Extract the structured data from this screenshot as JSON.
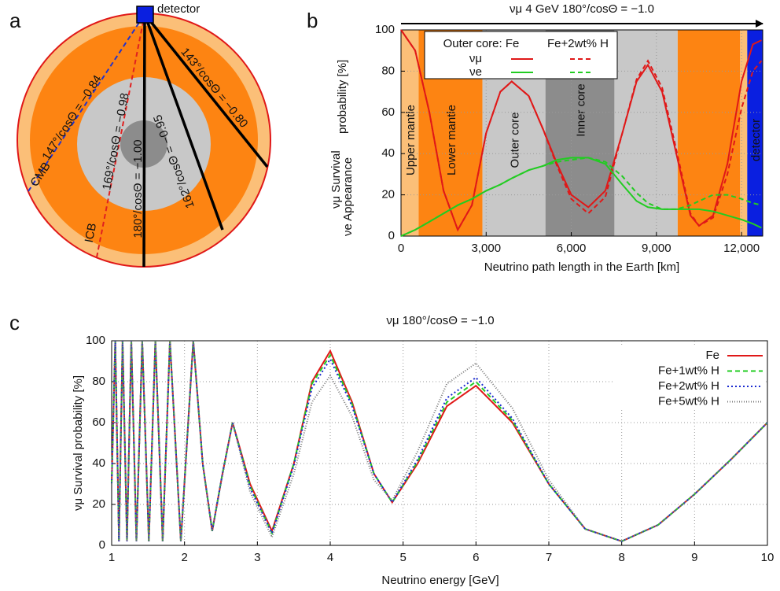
{
  "panel_labels": [
    "a",
    "b",
    "c"
  ],
  "panel_a": {
    "detector": "detector",
    "paths": [
      {
        "boundary": "CMB",
        "angle": "147°/cosΘ = −0.84",
        "color": "#2233cc",
        "dashed": true
      },
      {
        "boundary": "ICB",
        "angle": "169°/cosΘ = −0.98",
        "color": "#e02020",
        "dashed": true
      },
      {
        "angle": "180°/cosΘ = −1.00",
        "color": "#000000",
        "dashed": false
      },
      {
        "angle": "162°/cosΘ = −0.95",
        "color": "#000000",
        "dashed": false
      },
      {
        "angle": "143°/cosΘ = −0.80",
        "color": "#000000",
        "dashed": false
      }
    ]
  },
  "chart_data": [
    {
      "type": "line",
      "title": "νμ  4 GeV  180°/cosΘ = −1.0",
      "xlabel": "Neutrino path length in the Earth [km]",
      "ylabel": {
        "survival": "νμ  Survival",
        "appearance": "νe Appearance",
        "unit": "probability [%]"
      },
      "xlim": [
        0,
        12745
      ],
      "ylim": [
        0,
        100
      ],
      "xticks": [
        0,
        {
          "value": 3000,
          "label": "3,000"
        },
        {
          "value": 6000,
          "label": "6,000"
        },
        {
          "value": 9000,
          "label": "9,000"
        },
        {
          "value": 12000,
          "label": "12,000"
        }
      ],
      "yticks": [
        0,
        20,
        40,
        60,
        80,
        100
      ],
      "grid": true,
      "regions": [
        {
          "label": "Upper mantle",
          "start": 0,
          "end": 620,
          "color": "#fbbf78"
        },
        {
          "label": "Lower mantle",
          "start": 620,
          "end": 2870,
          "color": "#fd8412"
        },
        {
          "label": "Outer core",
          "start": 2870,
          "end": 5090,
          "color": "#c8c8c8"
        },
        {
          "label": "Inner core",
          "start": 5090,
          "end": 7520,
          "color": "#8c8c8c"
        },
        {
          "start": 7520,
          "end": 9750,
          "color": "#c8c8c8"
        },
        {
          "start": 9750,
          "end": 11950,
          "color": "#fd8412"
        },
        {
          "start": 11950,
          "end": 12200,
          "color": "#fbbf78"
        },
        {
          "label": "detector",
          "start": 12200,
          "end": 12745,
          "color": "#0a1fe0"
        }
      ],
      "legend": {
        "columns": [
          "Outer core: Fe",
          "Fe+2wt% H"
        ],
        "rows": [
          "νμ",
          "νe"
        ]
      },
      "x": [
        0,
        500,
        1000,
        1500,
        2000,
        2500,
        3000,
        3500,
        3900,
        4500,
        5000,
        5500,
        6000,
        6600,
        7200,
        7800,
        8300,
        8700,
        9200,
        9700,
        10200,
        10500,
        11000,
        11500,
        12000,
        12400,
        12700
      ],
      "series": [
        {
          "color": "#e01818",
          "dashed": false,
          "row": 0,
          "col": 0,
          "values": [
            100,
            90,
            60,
            22,
            3,
            15,
            50,
            70,
            75,
            68,
            52,
            35,
            20,
            14,
            22,
            50,
            75,
            83,
            70,
            40,
            10,
            5,
            10,
            35,
            75,
            93,
            95
          ]
        },
        {
          "color": "#e01818",
          "dashed": true,
          "row": 0,
          "col": 1,
          "values": [
            100,
            90,
            60,
            22,
            3,
            15,
            50,
            70,
            75,
            68,
            52,
            34,
            18,
            11,
            19,
            50,
            76,
            85,
            72,
            42,
            11,
            5,
            9,
            30,
            62,
            80,
            85
          ]
        },
        {
          "color": "#22cc22",
          "dashed": false,
          "row": 1,
          "col": 0,
          "values": [
            0,
            3,
            7,
            11,
            15,
            18,
            22,
            25,
            28,
            32,
            34,
            37,
            38,
            38,
            35,
            25,
            17,
            14,
            13,
            13,
            13,
            13,
            12,
            10,
            8,
            6,
            4
          ]
        },
        {
          "color": "#22cc22",
          "dashed": true,
          "row": 1,
          "col": 1,
          "values": [
            0,
            3,
            7,
            11,
            15,
            18,
            22,
            25,
            28,
            32,
            34,
            36,
            37,
            38,
            36,
            29,
            21,
            16,
            13,
            13,
            15,
            17,
            20,
            20,
            18,
            16,
            15
          ]
        }
      ]
    },
    {
      "type": "line",
      "title": "νμ    180°/cosΘ = −1.0",
      "xlabel": "Neutrino energy [GeV]",
      "ylabel": "νμ  Survival  probability [%]",
      "xlim": [
        1,
        10
      ],
      "ylim": [
        0,
        100
      ],
      "xticks": [
        1,
        2,
        3,
        4,
        5,
        6,
        7,
        8,
        9,
        10
      ],
      "yticks": [
        0,
        20,
        40,
        60,
        80,
        100
      ],
      "grid": true,
      "x": [
        1,
        1.05,
        1.1,
        1.15,
        1.21,
        1.27,
        1.34,
        1.42,
        1.51,
        1.6,
        1.7,
        1.8,
        1.95,
        2.12,
        2.25,
        2.38,
        2.52,
        2.66,
        2.9,
        3.2,
        3.5,
        3.75,
        4.0,
        4.3,
        4.6,
        4.85,
        5.2,
        5.6,
        6.0,
        6.5,
        7.0,
        7.5,
        8.0,
        8.5,
        9.0,
        9.5,
        10
      ],
      "series": [
        {
          "name": "Fe",
          "color": "#e01818",
          "dash": "",
          "values": [
            30,
            100,
            2,
            100,
            2,
            100,
            2,
            100,
            2,
            100,
            2,
            100,
            2,
            100,
            40,
            7,
            35,
            60,
            30,
            7,
            40,
            80,
            95,
            70,
            35,
            21,
            40,
            68,
            78,
            60,
            30,
            8,
            2,
            10,
            25,
            42,
            60
          ]
        },
        {
          "name": "Fe+1wt% H",
          "color": "#22cc22",
          "dash": "6,4",
          "values": [
            30,
            100,
            2,
            100,
            2,
            100,
            2,
            100,
            2,
            100,
            2,
            100,
            2,
            100,
            40,
            7,
            35,
            60,
            29,
            6,
            40,
            79,
            93,
            69,
            35,
            21,
            41,
            70,
            80,
            61,
            30,
            8,
            2,
            10,
            25,
            42,
            60
          ]
        },
        {
          "name": "Fe+2wt% H",
          "color": "#1a2ad0",
          "dash": "2,3",
          "values": [
            30,
            100,
            2,
            100,
            2,
            100,
            2,
            100,
            2,
            100,
            2,
            100,
            2,
            100,
            40,
            7,
            35,
            60,
            28,
            6,
            39,
            77,
            91,
            68,
            35,
            21,
            42,
            72,
            82,
            62,
            30,
            8,
            2,
            10,
            25,
            42,
            60
          ]
        },
        {
          "name": "Fe+5wt% H",
          "color": "#777777",
          "dash": "1,2",
          "values": [
            30,
            100,
            2,
            100,
            2,
            100,
            2,
            100,
            2,
            100,
            2,
            100,
            2,
            100,
            40,
            7,
            34,
            60,
            26,
            4,
            35,
            70,
            83,
            63,
            32,
            22,
            46,
            79,
            89,
            67,
            32,
            8,
            2,
            10,
            25,
            42,
            60
          ]
        }
      ]
    }
  ]
}
